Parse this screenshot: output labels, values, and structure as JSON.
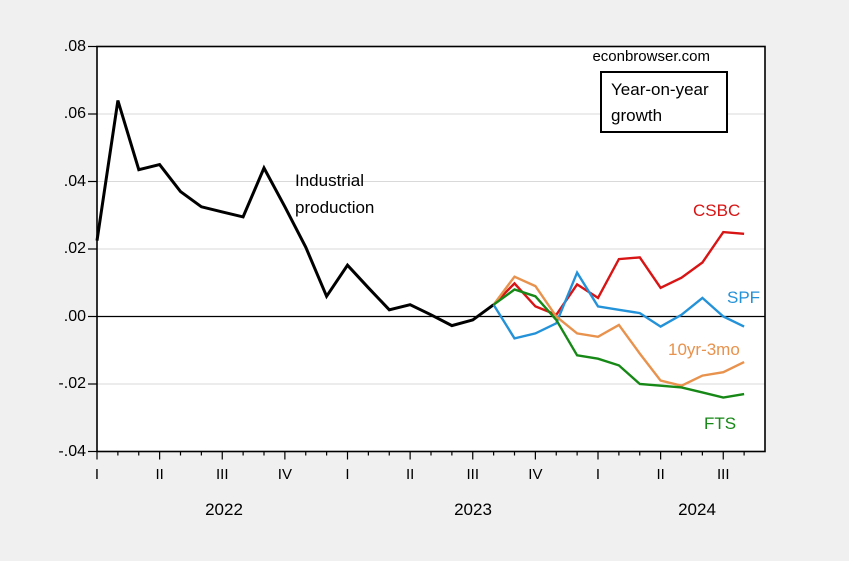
{
  "watermark": "econbrowser.com",
  "annotation_box": {
    "text": "Year-on-year growth"
  },
  "chart_data": {
    "type": "line",
    "title": "Year-on-year growth",
    "source_watermark": "econbrowser.com",
    "x_axis": {
      "unit": "monthly",
      "start_month": "2022-01",
      "end_month": "2024-09",
      "quarter_tick_labels": [
        "I",
        "II",
        "III",
        "IV",
        "I",
        "II",
        "III",
        "IV",
        "I",
        "II",
        "III"
      ],
      "quarter_tick_months": [
        0,
        3,
        6,
        9,
        12,
        15,
        18,
        21,
        24,
        27,
        30
      ],
      "year_labels": [
        "2022",
        "2023",
        "2024"
      ]
    },
    "y_axis": {
      "min": -0.04,
      "max": 0.08,
      "tick_step": 0.02,
      "tick_labels": [
        ".08",
        ".06",
        ".04",
        ".02",
        ".00",
        "-.02",
        "-.04"
      ],
      "tick_values": [
        0.08,
        0.06,
        0.04,
        0.02,
        0.0,
        -0.02,
        -0.04
      ],
      "gridline_values": [
        0.06,
        0.04,
        0.02,
        -0.02
      ],
      "zero_line": 0.0
    },
    "series": [
      {
        "name": "Industrial production",
        "label_text": "Industrial\nproduction",
        "color": "#000000",
        "line_width": 3,
        "start_month_index": 0,
        "months": [
          "2022-01",
          "2022-02",
          "2022-03",
          "2022-04",
          "2022-05",
          "2022-06",
          "2022-07",
          "2022-08",
          "2022-09",
          "2022-10",
          "2022-11",
          "2022-12",
          "2023-01",
          "2023-02",
          "2023-03",
          "2023-04",
          "2023-05",
          "2023-06",
          "2023-07",
          "2023-08"
        ],
        "values": [
          0.0225,
          0.064,
          0.0435,
          0.045,
          0.037,
          0.0325,
          0.031,
          0.0295,
          0.044,
          0.0325,
          0.0205,
          0.006,
          0.0152,
          0.0085,
          0.002,
          0.0035,
          0.0005,
          -0.0027,
          -0.001,
          0.0035
        ]
      },
      {
        "name": "CSBC",
        "label_text": "CSBC",
        "color": "#d81414",
        "line_width": 2.4,
        "start_month_index": 19,
        "months": [
          "2023-08",
          "2023-09",
          "2023-10",
          "2023-11",
          "2023-12",
          "2024-01",
          "2024-02",
          "2024-03",
          "2024-04",
          "2024-05",
          "2024-06",
          "2024-07",
          "2024-08"
        ],
        "values": [
          0.0035,
          0.0098,
          0.003,
          0.0005,
          0.0095,
          0.0055,
          0.017,
          0.0175,
          0.0085,
          0.0115,
          0.016,
          0.025,
          0.0245
        ]
      },
      {
        "name": "SPF",
        "label_text": "SPF",
        "color": "#2492d8",
        "line_width": 2.4,
        "start_month_index": 19,
        "months": [
          "2023-08",
          "2023-09",
          "2023-10",
          "2023-11",
          "2023-12",
          "2024-01",
          "2024-02",
          "2024-03",
          "2024-04",
          "2024-05",
          "2024-06",
          "2024-07",
          "2024-08"
        ],
        "values": [
          0.0035,
          -0.0065,
          -0.005,
          -0.002,
          0.013,
          0.003,
          0.002,
          0.001,
          -0.003,
          0.0005,
          0.0055,
          0.0,
          -0.003
        ]
      },
      {
        "name": "10yr-3mo",
        "label_text": "10yr-3mo",
        "color": "#e8924d",
        "line_width": 2.4,
        "start_month_index": 19,
        "months": [
          "2023-08",
          "2023-09",
          "2023-10",
          "2023-11",
          "2023-12",
          "2024-01",
          "2024-02",
          "2024-03",
          "2024-04",
          "2024-05",
          "2024-06",
          "2024-07",
          "2024-08"
        ],
        "values": [
          0.0035,
          0.0118,
          0.009,
          0.0,
          -0.005,
          -0.006,
          -0.0025,
          -0.011,
          -0.019,
          -0.0205,
          -0.0175,
          -0.0165,
          -0.0135
        ]
      },
      {
        "name": "FTS",
        "label_text": "FTS",
        "color": "#168816",
        "line_width": 2.4,
        "start_month_index": 19,
        "months": [
          "2023-08",
          "2023-09",
          "2023-10",
          "2023-11",
          "2023-12",
          "2024-01",
          "2024-02",
          "2024-03",
          "2024-04",
          "2024-05",
          "2024-06",
          "2024-07",
          "2024-08"
        ],
        "values": [
          0.0035,
          0.008,
          0.006,
          -0.001,
          -0.0115,
          -0.0125,
          -0.0145,
          -0.02,
          -0.0205,
          -0.021,
          -0.0225,
          -0.024,
          -0.023
        ]
      }
    ],
    "legend_position": "labels-on-chart",
    "grid": true,
    "plot_background": "#ffffff",
    "outer_background": "#f0f0f0",
    "gridline_color": "#d9d9d9"
  }
}
